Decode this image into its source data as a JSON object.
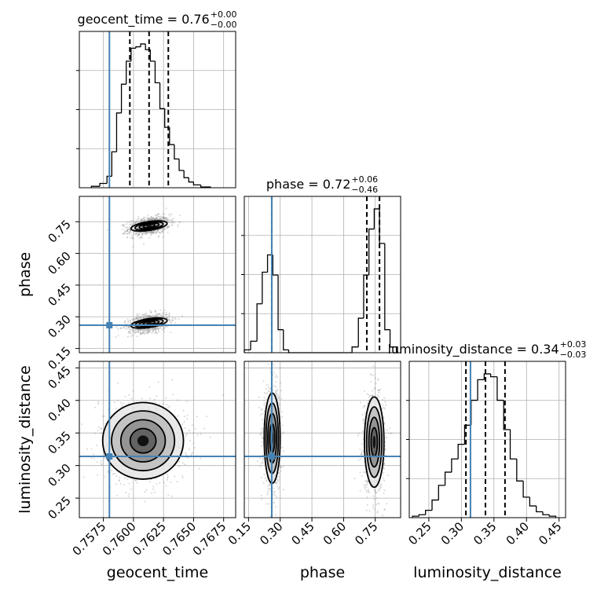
{
  "chart_data": {
    "type": "corner",
    "parameters": [
      "geocent_time",
      "phase",
      "luminosity_distance"
    ],
    "truths": {
      "geocent_time": 0.758,
      "phase": 0.26,
      "luminosity_distance": 0.314
    },
    "axes": {
      "geocent_time": {
        "range": [
          0.7555,
          0.7685
        ],
        "ticks": [
          "0.7575",
          "0.7600",
          "0.7625",
          "0.7650",
          "0.7675"
        ]
      },
      "phase": {
        "range": [
          0.13,
          0.87
        ],
        "ticks": [
          "0.15",
          "0.30",
          "0.45",
          "0.60",
          "0.75"
        ]
      },
      "luminosity_distance": {
        "range": [
          0.22,
          0.46
        ],
        "ticks": [
          "0.25",
          "0.30",
          "0.35",
          "0.40",
          "0.45"
        ]
      }
    },
    "diagonals": [
      {
        "param": "geocent_time",
        "title": "geocent_time = 0.76",
        "title_plus": "+0.00",
        "title_minus": "−0.00",
        "quantiles": [
          0.7597,
          0.7613,
          0.7629
        ],
        "bin_edges": [
          0.7565,
          0.7572,
          0.7578,
          0.7582,
          0.7586,
          0.759,
          0.7594,
          0.7598,
          0.7602,
          0.7606,
          0.761,
          0.7614,
          0.7618,
          0.7622,
          0.7626,
          0.763,
          0.7634,
          0.7638,
          0.7642,
          0.7646,
          0.765,
          0.7656,
          0.7664
        ],
        "counts": [
          1,
          3,
          8,
          25,
          52,
          72,
          88,
          97,
          98,
          100,
          96,
          88,
          73,
          55,
          42,
          30,
          20,
          12,
          7,
          4,
          2,
          0.5
        ],
        "gridlines": [
          0.7575,
          0.76,
          0.7625,
          0.765,
          0.7675
        ]
      },
      {
        "param": "phase",
        "title": "phase = 0.72",
        "title_plus": "+0.06",
        "title_minus": "−0.46",
        "quantiles": [
          0.26,
          0.71,
          0.77
        ],
        "bin_edges": [
          0.13,
          0.16,
          0.19,
          0.215,
          0.24,
          0.265,
          0.29,
          0.315,
          0.34,
          0.64,
          0.67,
          0.695,
          0.72,
          0.745,
          0.77,
          0.795,
          0.82,
          0.85
        ],
        "counts": [
          2,
          8,
          34,
          56,
          68,
          54,
          16,
          2,
          0,
          4,
          24,
          54,
          86,
          100,
          76,
          16,
          4
        ],
        "gridlines": [
          0.15,
          0.3,
          0.45,
          0.6,
          0.75
        ]
      },
      {
        "param": "luminosity_distance",
        "title": "luminosity_distance = 0.34",
        "title_plus": "+0.03",
        "title_minus": "−0.03",
        "quantiles": [
          0.307,
          0.337,
          0.367
        ],
        "bin_edges": [
          0.225,
          0.235,
          0.245,
          0.255,
          0.265,
          0.275,
          0.285,
          0.295,
          0.305,
          0.315,
          0.325,
          0.335,
          0.345,
          0.355,
          0.365,
          0.375,
          0.385,
          0.395,
          0.405,
          0.415,
          0.425,
          0.435,
          0.445
        ],
        "counts": [
          1,
          2,
          5,
          12,
          22,
          31,
          40,
          50,
          63,
          80,
          94,
          98,
          96,
          80,
          60,
          40,
          25,
          14,
          8,
          4,
          2,
          1
        ],
        "gridlines": [
          0.25,
          0.3,
          0.35,
          0.4,
          0.45
        ]
      }
    ],
    "pairs": [
      {
        "x": "geocent_time",
        "y": "phase",
        "modes": [
          {
            "cx": 0.7613,
            "cy": 0.73,
            "sx": 0.00075,
            "sy": 0.018,
            "slope": 8.5
          },
          {
            "cx": 0.7613,
            "cy": 0.27,
            "sx": 0.00075,
            "sy": 0.018,
            "slope": 8.5
          }
        ]
      },
      {
        "x": "geocent_time",
        "y": "luminosity_distance",
        "modes": [
          {
            "cx": 0.7608,
            "cy": 0.338,
            "sx": 0.0016,
            "sy": 0.028,
            "slope": 0
          }
        ]
      },
      {
        "x": "phase",
        "y": "luminosity_distance",
        "modes": [
          {
            "cx": 0.262,
            "cy": 0.342,
            "sx": 0.018,
            "sy": 0.033,
            "slope": 0
          },
          {
            "cx": 0.745,
            "cy": 0.336,
            "sx": 0.022,
            "sy": 0.033,
            "slope": 0
          }
        ]
      }
    ]
  }
}
